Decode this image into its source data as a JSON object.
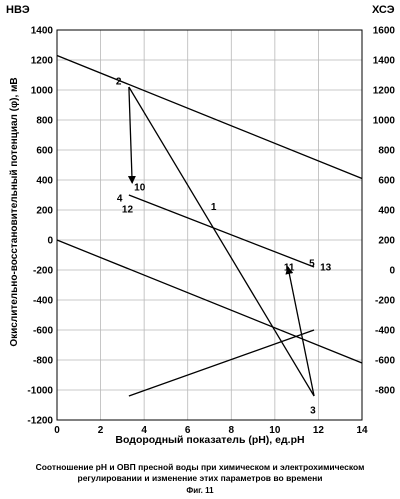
{
  "chart_data": {
    "type": "line",
    "left_axis_title": "НВЭ",
    "right_axis_title": "ХСЭ",
    "xlabel": "Водородный показатель (pH),  ед.pH",
    "ylabel": "Окислительно-восстановительный потенциал (φ), мВ",
    "xlim": [
      0,
      14
    ],
    "ylim_left": [
      -1200,
      1400
    ],
    "ylim_right": [
      -1000,
      1600
    ],
    "xticks": [
      "0",
      "2",
      "4",
      "6",
      "8",
      "10",
      "12",
      "14"
    ],
    "yticks_left": [
      "1400",
      "1200",
      "1000",
      "800",
      "600",
      "400",
      "200",
      "0",
      "-200",
      "-400",
      "-600",
      "-800",
      "-1000",
      "-1200"
    ],
    "yticks_right": [
      "1600",
      "1400",
      "1200",
      "1000",
      "800",
      "600",
      "400",
      "200",
      "0",
      "-200",
      "-400",
      "-600",
      "-800"
    ],
    "grid": true,
    "series": [
      {
        "type": "line",
        "x": [
          0,
          14
        ],
        "y": [
          1230,
          410
        ]
      },
      {
        "type": "line",
        "x": [
          0,
          14
        ],
        "y": [
          0,
          -820
        ]
      },
      {
        "type": "line",
        "x": [
          3.3,
          11.8
        ],
        "y": [
          1020,
          -1040
        ]
      },
      {
        "type": "line",
        "x": [
          3.3,
          11.8
        ],
        "y": [
          300,
          -180
        ]
      },
      {
        "type": "line",
        "x": [
          3.3,
          11.8
        ],
        "y": [
          -1040,
          -600
        ]
      }
    ],
    "arrows": [
      {
        "from": [
          3.3,
          1020
        ],
        "to": [
          3.45,
          380
        ]
      },
      {
        "from": [
          11.8,
          -1040
        ],
        "to": [
          10.6,
          -180
        ]
      }
    ],
    "points": [
      {
        "label": "1",
        "x": 7.2,
        "y": 130
      },
      {
        "label": "2",
        "x": 3.3,
        "y": 1020
      },
      {
        "label": "3",
        "x": 11.8,
        "y": -1040
      },
      {
        "label": "4",
        "x": 3.3,
        "y": 300
      },
      {
        "label": "5",
        "x": 11.8,
        "y": -180
      },
      {
        "label": "10",
        "x": 3.45,
        "y": 380
      },
      {
        "label": "11",
        "x": 10.6,
        "y": -180
      },
      {
        "label": "12",
        "x": 3.3,
        "y": 300
      },
      {
        "label": "13",
        "x": 11.8,
        "y": -180
      }
    ]
  },
  "caption": {
    "line1": "Соотношение pH и ОВП пресной воды при химическом и электрохимическом",
    "line2": "регулировании и изменение этих параметров во времени",
    "figure": "Фиг. 11"
  }
}
